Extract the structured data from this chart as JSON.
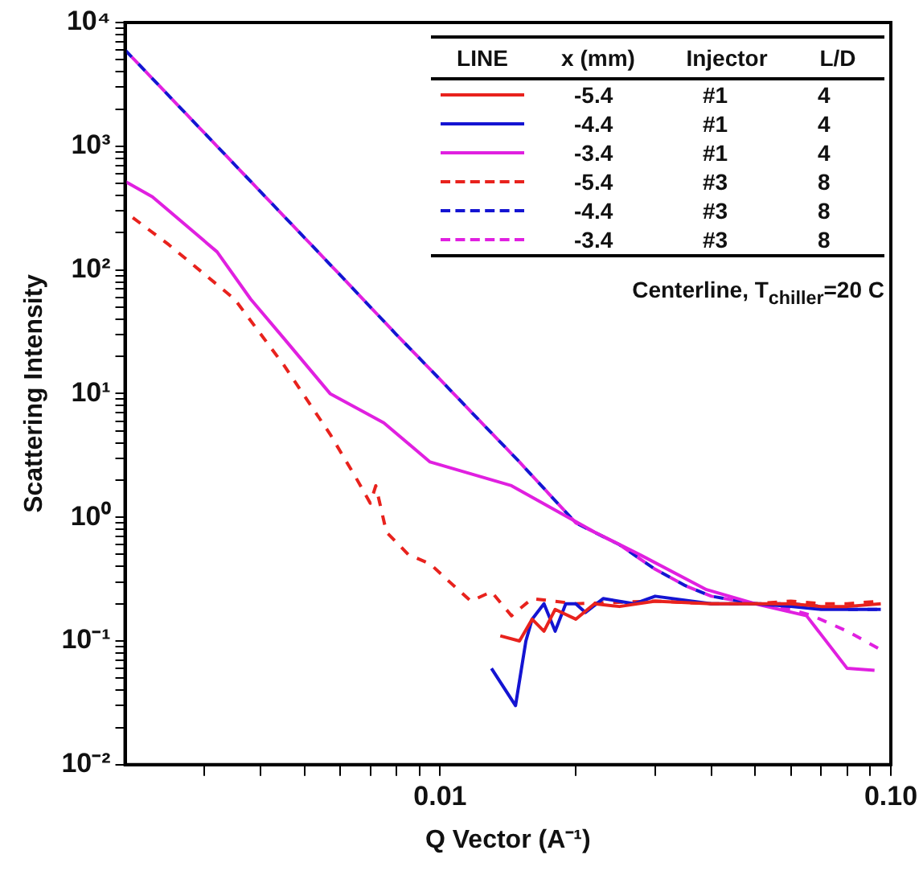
{
  "chart_data": {
    "type": "line",
    "xlabel": "Q Vector (A⁻¹)",
    "ylabel": "Scattering Intensity",
    "legend_title": "LINE  x (mm)  Injector  L/D",
    "annotations": [
      "Centerline, T$_{chiller}$=20 C"
    ],
    "log": "xy",
    "grid": false,
    "legend": "top right",
    "marker": "none",
    "xlim": [
      0.002,
      0.1
    ],
    "ylim": [
      0.01,
      10000
    ],
    "xticks": [
      {
        "value": 0.003,
        "label": null
      },
      {
        "value": 0.004,
        "label": null
      },
      {
        "value": 0.005,
        "label": null
      },
      {
        "value": 0.006,
        "label": null
      },
      {
        "value": 0.007,
        "label": null
      },
      {
        "value": 0.008,
        "label": null
      },
      {
        "value": 0.009,
        "label": null
      },
      {
        "value": 0.01,
        "label": "0.01"
      },
      {
        "value": 0.02,
        "label": null
      },
      {
        "value": 0.03,
        "label": null
      },
      {
        "value": 0.04,
        "label": null
      },
      {
        "value": 0.05,
        "label": null
      },
      {
        "value": 0.06,
        "label": null
      },
      {
        "value": 0.07,
        "label": null
      },
      {
        "value": 0.08,
        "label": null
      },
      {
        "value": 0.09,
        "label": null
      },
      {
        "value": 0.1,
        "label": "0.10"
      }
    ],
    "yticks": [
      {
        "value": 0.01,
        "label": "10⁻²"
      },
      {
        "value": 0.02,
        "label": null
      },
      {
        "value": 0.03,
        "label": null
      },
      {
        "value": 0.04,
        "label": null
      },
      {
        "value": 0.05,
        "label": null
      },
      {
        "value": 0.06,
        "label": null
      },
      {
        "value": 0.07,
        "label": null
      },
      {
        "value": 0.08,
        "label": null
      },
      {
        "value": 0.09,
        "label": null
      },
      {
        "value": 0.1,
        "label": "10⁻¹"
      },
      {
        "value": 0.2,
        "label": null
      },
      {
        "value": 0.3,
        "label": null
      },
      {
        "value": 0.4,
        "label": null
      },
      {
        "value": 0.5,
        "label": null
      },
      {
        "value": 0.6,
        "label": null
      },
      {
        "value": 0.7,
        "label": null
      },
      {
        "value": 0.8,
        "label": null
      },
      {
        "value": 0.9,
        "label": null
      },
      {
        "value": 1,
        "label": "10⁰"
      },
      {
        "value": 2,
        "label": null
      },
      {
        "value": 3,
        "label": null
      },
      {
        "value": 4,
        "label": null
      },
      {
        "value": 5,
        "label": null
      },
      {
        "value": 6,
        "label": null
      },
      {
        "value": 7,
        "label": null
      },
      {
        "value": 8,
        "label": null
      },
      {
        "value": 9,
        "label": null
      },
      {
        "value": 10,
        "label": "10¹"
      },
      {
        "value": 20,
        "label": null
      },
      {
        "value": 30,
        "label": null
      },
      {
        "value": 40,
        "label": null
      },
      {
        "value": 50,
        "label": null
      },
      {
        "value": 60,
        "label": null
      },
      {
        "value": 70,
        "label": null
      },
      {
        "value": 80,
        "label": null
      },
      {
        "value": 90,
        "label": null
      },
      {
        "value": 100,
        "label": "10²"
      },
      {
        "value": 200,
        "label": null
      },
      {
        "value": 300,
        "label": null
      },
      {
        "value": 400,
        "label": null
      },
      {
        "value": 500,
        "label": null
      },
      {
        "value": 600,
        "label": null
      },
      {
        "value": 700,
        "label": null
      },
      {
        "value": 800,
        "label": null
      },
      {
        "value": 900,
        "label": null
      },
      {
        "value": 1000,
        "label": "10³"
      },
      {
        "value": 2000,
        "label": null
      },
      {
        "value": 3000,
        "label": null
      },
      {
        "value": 4000,
        "label": null
      },
      {
        "value": 5000,
        "label": null
      },
      {
        "value": 6000,
        "label": null
      },
      {
        "value": 7000,
        "label": null
      },
      {
        "value": 8000,
        "label": null
      },
      {
        "value": 9000,
        "label": null
      },
      {
        "value": 10000,
        "label": "10⁴"
      }
    ],
    "series": [
      {
        "name": "-5.4  #1  4",
        "color": "#e8221d",
        "line_style": "solid",
        "x": [
          0.0136,
          0.015,
          0.016,
          0.017,
          0.018,
          0.02,
          0.022,
          0.025,
          0.03,
          0.04,
          0.05,
          0.06,
          0.07,
          0.08,
          0.095
        ],
        "values": [
          0.11,
          0.1,
          0.15,
          0.12,
          0.18,
          0.15,
          0.2,
          0.19,
          0.21,
          0.2,
          0.2,
          0.2,
          0.19,
          0.19,
          0.2
        ]
      },
      {
        "name": "-4.4  #1  4",
        "color": "#1414d2",
        "line_style": "solid",
        "x": [
          0.013,
          0.0147,
          0.0155,
          0.016,
          0.017,
          0.018,
          0.019,
          0.02,
          0.021,
          0.023,
          0.027,
          0.03,
          0.04,
          0.05,
          0.06,
          0.07,
          0.08,
          0.095
        ],
        "values": [
          0.06,
          0.03,
          0.1,
          0.15,
          0.2,
          0.12,
          0.2,
          0.2,
          0.17,
          0.22,
          0.2,
          0.23,
          0.2,
          0.2,
          0.19,
          0.18,
          0.18,
          0.18
        ]
      },
      {
        "name": "-3.4  #1  4",
        "color": "#e020e0",
        "line_style": "solid",
        "x": [
          0.002,
          0.0023,
          0.0032,
          0.0038,
          0.0045,
          0.0057,
          0.0075,
          0.0095,
          0.0144,
          0.022,
          0.028,
          0.039,
          0.05,
          0.065,
          0.08,
          0.092
        ],
        "values": [
          520,
          390,
          140,
          58,
          28,
          10,
          5.8,
          2.8,
          1.8,
          0.76,
          0.49,
          0.26,
          0.2,
          0.16,
          0.06,
          0.058
        ]
      },
      {
        "name": "-5.4  #3  8",
        "color": "#e8221d",
        "line_style": "dashed",
        "x": [
          0.002,
          0.0025,
          0.0035,
          0.0045,
          0.0057,
          0.0065,
          0.007,
          0.0072,
          0.0076,
          0.0085,
          0.0095,
          0.0105,
          0.0117,
          0.013,
          0.0144,
          0.016,
          0.02,
          0.03,
          0.04,
          0.05,
          0.06,
          0.07,
          0.08,
          0.095
        ],
        "values": [
          295,
          160,
          58,
          17,
          4.7,
          2.1,
          1.3,
          1.8,
          0.76,
          0.5,
          0.42,
          0.3,
          0.21,
          0.25,
          0.16,
          0.22,
          0.2,
          0.21,
          0.2,
          0.2,
          0.21,
          0.2,
          0.2,
          0.21
        ]
      },
      {
        "name": "-4.4  #3  8",
        "color": "#1414d2",
        "line_style": "dashed",
        "x": [
          0.002,
          0.004,
          0.006,
          0.008,
          0.01,
          0.012,
          0.015,
          0.02,
          0.025,
          0.03,
          0.035,
          0.04,
          0.05,
          0.06,
          0.07,
          0.08,
          0.095
        ],
        "values": [
          6000,
          427,
          91,
          30,
          13,
          6.5,
          2.8,
          0.9,
          0.6,
          0.38,
          0.28,
          0.23,
          0.2,
          0.2,
          0.19,
          0.18,
          0.18
        ]
      },
      {
        "name": "-3.4  #3  8",
        "color": "#e020e0",
        "line_style": "dashed",
        "x": [
          0.002,
          0.004,
          0.006,
          0.008,
          0.01,
          0.012,
          0.015,
          0.02,
          0.025,
          0.03,
          0.035,
          0.04,
          0.05,
          0.06,
          0.067,
          0.08,
          0.095
        ],
        "values": [
          6000,
          427,
          91,
          30,
          13,
          6.5,
          2.8,
          0.9,
          0.6,
          0.38,
          0.28,
          0.23,
          0.2,
          0.18,
          0.16,
          0.12,
          0.085
        ]
      }
    ]
  }
}
